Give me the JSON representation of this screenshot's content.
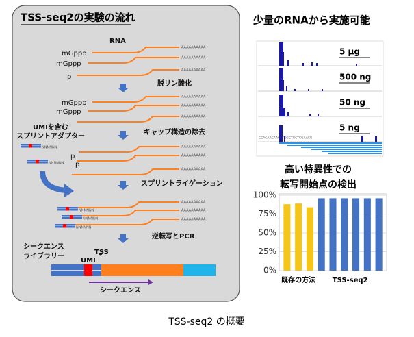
{
  "left_panel": {
    "title": "TSS-seq2の実験の流れ",
    "rna": "RNA",
    "cap": "mGppp",
    "phosphate": "p",
    "poly_a": "AAAAAAAAAA",
    "umi_n": "NNNNNN",
    "steps": [
      "脱リン酸化",
      "キャップ構造の除去",
      "スプリントライゲーション",
      "逆転写とPCR"
    ],
    "adapter_label": [
      "UMIを含む",
      "スプリントアダプター"
    ],
    "library_label": [
      "シークエンス",
      "ライブラリー"
    ],
    "umi": "UMI",
    "tss": "TSS",
    "sequence": "シークエンス"
  },
  "right_panel": {
    "title": "少量のRNAから実施可能",
    "amounts": [
      "5 µg",
      "500 ng",
      "50 ng",
      "5 ng"
    ],
    "sequence_text": "CCACAACAAGATGGCTGCTCGAACG",
    "chart_title": [
      "高い特異性での",
      "転写開始点の検出"
    ],
    "bar_chart": {
      "type": "bar",
      "ylim": [
        0,
        100
      ],
      "yticks": [
        {
          "value": 0,
          "label": "0%"
        },
        {
          "value": 25,
          "label": "25%"
        },
        {
          "value": 50,
          "label": "50%"
        },
        {
          "value": 75,
          "label": "75%"
        },
        {
          "value": 100,
          "label": "100%"
        }
      ],
      "groups": [
        {
          "name": "既存の方法",
          "color": "#f5c518",
          "values": [
            88,
            89,
            84
          ]
        },
        {
          "name": "TSS-seq2",
          "color": "#4472c4",
          "values": [
            96,
            96,
            96,
            96,
            96,
            96
          ]
        }
      ]
    }
  },
  "caption": "TSS-seq2 の概要"
}
